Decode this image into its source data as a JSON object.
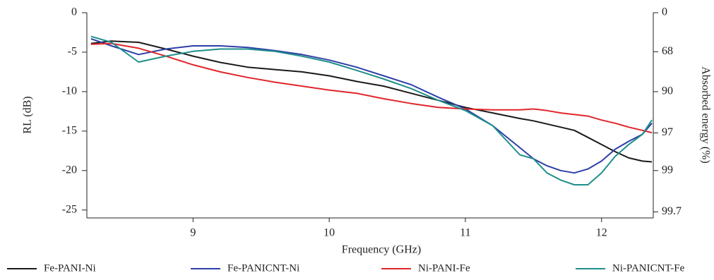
{
  "chart_data": {
    "type": "line",
    "x_label": "Frequency (GHz)",
    "y_label": "RL (dB)",
    "y2_label": "Absorbed energy (%)",
    "xlim": [
      8.22,
      12.38
    ],
    "xticks": [
      9,
      10,
      11,
      12
    ],
    "ylim": [
      -26,
      0
    ],
    "yticks": [
      0,
      -5,
      -10,
      -15,
      -20,
      -25
    ],
    "y2lim": [
      0,
      99.75
    ],
    "y2ticks": [
      0,
      68,
      90,
      97,
      99,
      99.7
    ],
    "y2scale": "absorbed-energy",
    "grid": false,
    "legend": "bottom",
    "x": [
      8.25,
      8.4,
      8.6,
      8.8,
      9.0,
      9.2,
      9.4,
      9.6,
      9.8,
      10.0,
      10.2,
      10.4,
      10.6,
      10.8,
      11.0,
      11.2,
      11.4,
      11.5,
      11.6,
      11.7,
      11.8,
      11.9,
      12.0,
      12.1,
      12.2,
      12.3,
      12.37
    ],
    "series": [
      {
        "name": "Fe-PANI-Ni",
        "color": "#1a1a1a",
        "values": [
          -3.9,
          -3.6,
          -3.75,
          -4.6,
          -5.5,
          -6.3,
          -6.9,
          -7.2,
          -7.5,
          -8.0,
          -8.7,
          -9.3,
          -10.2,
          -11.1,
          -12.0,
          -12.7,
          -13.4,
          -13.7,
          -14.1,
          -14.5,
          -14.9,
          -15.8,
          -16.7,
          -17.6,
          -18.4,
          -18.8,
          -18.9
        ]
      },
      {
        "name": "Fe-PANICNT-Ni",
        "color": "#2d3fa8",
        "values": [
          -3.3,
          -4.2,
          -5.3,
          -4.6,
          -4.2,
          -4.2,
          -4.4,
          -4.8,
          -5.3,
          -6.0,
          -6.9,
          -8.0,
          -9.1,
          -10.7,
          -12.2,
          -14.3,
          -17.1,
          -18.5,
          -19.4,
          -20.0,
          -20.3,
          -19.8,
          -18.8,
          -17.3,
          -16.3,
          -15.4,
          -14.0
        ]
      },
      {
        "name": "Ni-PANI-Fe",
        "color": "#e0262b",
        "values": [
          -4.0,
          -3.9,
          -4.5,
          -5.5,
          -6.6,
          -7.5,
          -8.2,
          -8.8,
          -9.3,
          -9.8,
          -10.2,
          -10.9,
          -11.5,
          -12.0,
          -12.2,
          -12.3,
          -12.3,
          -12.2,
          -12.4,
          -12.7,
          -12.9,
          -13.1,
          -13.6,
          -14.0,
          -14.5,
          -14.9,
          -15.2
        ]
      },
      {
        "name": "Ni-PANICNT-Fe",
        "color": "#1f8f8a",
        "values": [
          -3.0,
          -3.75,
          -6.25,
          -5.5,
          -4.9,
          -4.6,
          -4.6,
          -4.9,
          -5.5,
          -6.25,
          -7.3,
          -8.4,
          -9.6,
          -11.1,
          -12.4,
          -14.3,
          -18.0,
          -18.5,
          -20.3,
          -21.2,
          -21.8,
          -21.8,
          -20.3,
          -18.2,
          -16.7,
          -15.4,
          -13.6
        ]
      }
    ]
  }
}
